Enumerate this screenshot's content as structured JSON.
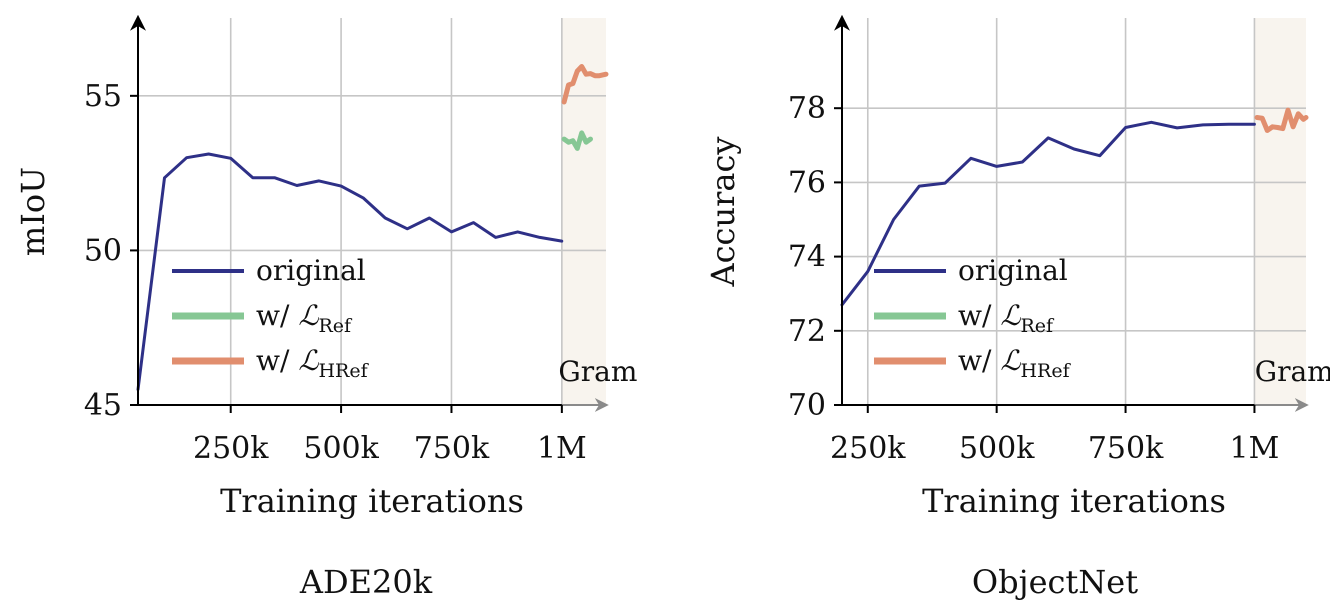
{
  "colors": {
    "original": "#2e3087",
    "w_ref": "#86c794",
    "w_href": "#e18e6e",
    "gram_region": "#f8f4ee",
    "grid": "#c6c6c6"
  },
  "chart_data": [
    {
      "type": "line",
      "panel_title": "ADE20k",
      "xlabel": "Training iterations",
      "ylabel": "mIoU",
      "xlim": [
        40000,
        1100000
      ],
      "ylim": [
        45,
        57
      ],
      "xticks": [
        250000,
        500000,
        750000,
        1000000
      ],
      "xtick_labels": [
        "250k",
        "500k",
        "750k",
        "1M"
      ],
      "yticks": [
        45,
        50,
        55
      ],
      "ytick_labels": [
        "45",
        "50",
        "55"
      ],
      "region": {
        "label": "Gram",
        "x_start": 1000000,
        "x_end": 1100000
      },
      "grid": true,
      "legend_position": "lower-left",
      "series": [
        {
          "key": "original",
          "name": "original",
          "x": [
            40000,
            100000,
            150000,
            200000,
            250000,
            300000,
            350000,
            400000,
            450000,
            500000,
            550000,
            600000,
            650000,
            700000,
            750000,
            800000,
            850000,
            900000,
            950000,
            1000000
          ],
          "y": [
            45.5,
            52.35,
            53.0,
            53.12,
            52.98,
            52.35,
            52.35,
            52.1,
            52.25,
            52.08,
            51.7,
            51.05,
            50.7,
            51.05,
            50.6,
            50.9,
            50.42,
            50.6,
            50.42,
            50.3
          ]
        },
        {
          "key": "w_ref",
          "name": "w/ ",
          "name_sub": "Ref",
          "x": [
            1005000,
            1015000,
            1025000,
            1035000,
            1045000,
            1055000,
            1065000
          ],
          "y": [
            53.6,
            53.5,
            53.55,
            53.3,
            53.8,
            53.5,
            53.6
          ]
        },
        {
          "key": "w_href",
          "name": "w/ ",
          "name_sub": "HRef",
          "x": [
            1005000,
            1015000,
            1025000,
            1035000,
            1045000,
            1055000,
            1065000,
            1075000,
            1085000,
            1100000
          ],
          "y": [
            54.8,
            55.35,
            55.4,
            55.8,
            55.95,
            55.7,
            55.72,
            55.65,
            55.65,
            55.7
          ]
        }
      ]
    },
    {
      "type": "line",
      "panel_title": "ObjectNet",
      "xlabel": "Training iterations",
      "ylabel": "Accuracy",
      "xlim": [
        200000,
        1100000
      ],
      "ylim": [
        70,
        80
      ],
      "xticks": [
        250000,
        500000,
        750000,
        1000000
      ],
      "xtick_labels": [
        "250k",
        "500k",
        "750k",
        "1M"
      ],
      "yticks": [
        70,
        72,
        74,
        76,
        78
      ],
      "ytick_labels": [
        "70",
        "72",
        "74",
        "76",
        "78"
      ],
      "region": {
        "label": "Gram",
        "x_start": 1000000,
        "x_end": 1100000
      },
      "grid": true,
      "legend_position": "lower-left",
      "series": [
        {
          "key": "original",
          "name": "original",
          "x": [
            200000,
            250000,
            300000,
            350000,
            400000,
            450000,
            500000,
            550000,
            600000,
            650000,
            700000,
            750000,
            800000,
            850000,
            900000,
            950000,
            1000000
          ],
          "y": [
            72.7,
            73.6,
            75.0,
            75.9,
            75.98,
            76.65,
            76.43,
            76.55,
            77.2,
            76.9,
            76.72,
            77.48,
            77.62,
            77.47,
            77.55,
            77.57,
            77.57
          ]
        },
        {
          "key": "w_ref",
          "name": "w/ ",
          "name_sub": "Ref",
          "x": [],
          "y": []
        },
        {
          "key": "w_href",
          "name": "w/ ",
          "name_sub": "HRef",
          "x": [
            1005000,
            1015000,
            1025000,
            1035000,
            1045000,
            1055000,
            1065000,
            1075000,
            1085000,
            1095000,
            1100000
          ],
          "y": [
            77.75,
            77.73,
            77.4,
            77.5,
            77.48,
            77.45,
            77.95,
            77.5,
            77.85,
            77.7,
            77.75
          ]
        }
      ]
    }
  ]
}
